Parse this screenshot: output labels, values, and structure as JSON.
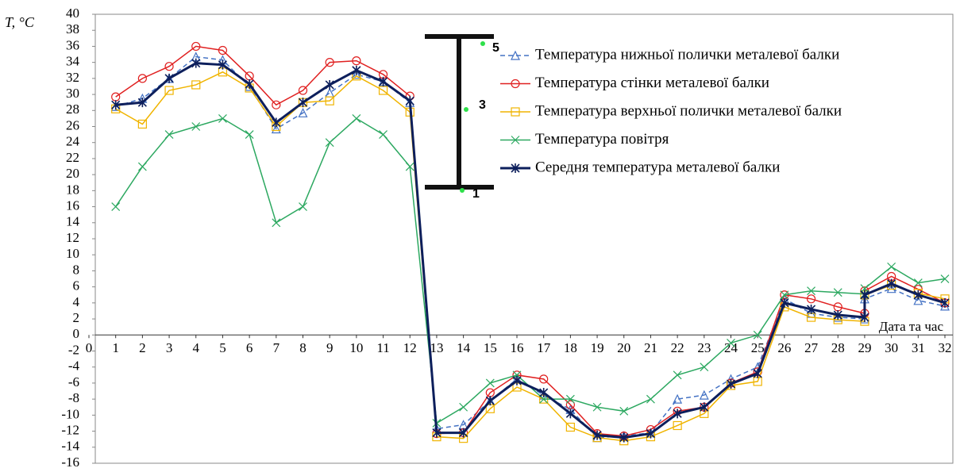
{
  "chart_data": {
    "type": "line",
    "ylabel": "T, °C",
    "xlabel": "Дата та час",
    "x": [
      1,
      2,
      3,
      4,
      5,
      6,
      7,
      8,
      9,
      10,
      11,
      12,
      13,
      14,
      15,
      16,
      17,
      18,
      19,
      20,
      21,
      22,
      23,
      24,
      25,
      26,
      27,
      28,
      29,
      29,
      30,
      31,
      32
    ],
    "xlim": [
      0,
      32
    ],
    "xticks": [
      0,
      1,
      2,
      3,
      4,
      5,
      6,
      7,
      8,
      9,
      10,
      11,
      12,
      13,
      14,
      15,
      16,
      17,
      18,
      19,
      20,
      21,
      22,
      23,
      24,
      25,
      26,
      27,
      28,
      29,
      30,
      31,
      32
    ],
    "ylim": [
      -16,
      40
    ],
    "yticks": [
      -16,
      -14,
      -12,
      -10,
      -8,
      -6,
      -4,
      -2,
      0,
      2,
      4,
      6,
      8,
      10,
      12,
      14,
      16,
      18,
      20,
      22,
      24,
      26,
      28,
      30,
      32,
      34,
      36,
      38,
      40
    ],
    "beam_labels": [
      {
        "text": "5",
        "color": "#f0a000"
      },
      {
        "text": "3",
        "color": "#e02020"
      },
      {
        "text": "1",
        "color": "#3a4fd0"
      }
    ],
    "series": [
      {
        "name": "Температура нижньої полички металевої балки",
        "color": "#4472c4",
        "marker": "triangle",
        "dash": true,
        "values": [
          28.5,
          29.5,
          32,
          34.7,
          34.3,
          31,
          25.7,
          27.7,
          30.2,
          32.5,
          31.6,
          29,
          -11.7,
          -11.2,
          -8.2,
          -5.5,
          -7.5,
          -9.3,
          -12.8,
          -12.6,
          -12.2,
          -8,
          -7.5,
          -5.5,
          -4,
          4.5,
          2.7,
          2.2,
          2,
          4.5,
          5.8,
          4.3,
          3.6
        ]
      },
      {
        "name": "Температура стінки металевої балки",
        "color": "#e02020",
        "marker": "circle",
        "values": [
          29.7,
          32,
          33.5,
          36,
          35.5,
          32.3,
          28.7,
          30.5,
          34,
          34.2,
          32.5,
          29.8,
          -12.3,
          -12.2,
          -7.2,
          -5,
          -5.5,
          -8.7,
          -12.3,
          -12.6,
          -11.8,
          -9.5,
          -9,
          -6,
          -4.6,
          5,
          4.5,
          3.5,
          2.7,
          5.5,
          7.3,
          5.7,
          4
        ]
      },
      {
        "name": "Температура верхньої полички металевої балки",
        "color": "#f0b400",
        "marker": "square",
        "values": [
          28.2,
          26.3,
          30.5,
          31.2,
          32.8,
          30.8,
          26,
          29,
          29.2,
          32.3,
          30.5,
          27.8,
          -12.7,
          -12.9,
          -9.2,
          -6.5,
          -8,
          -11.5,
          -12.8,
          -13.2,
          -12.7,
          -11.3,
          -9.8,
          -6.3,
          -5.8,
          3.5,
          2.2,
          1.9,
          1.7,
          5,
          6.2,
          5.2,
          4.5
        ]
      },
      {
        "name": "Температура повітря",
        "color": "#2ca860",
        "marker": "x",
        "values": [
          16,
          21,
          25,
          26,
          27,
          25,
          14,
          16,
          24,
          27,
          25,
          21,
          -11,
          -9,
          -6,
          -5,
          -8,
          -8,
          -9,
          -9.5,
          -8,
          -5,
          -4,
          -1,
          0,
          5,
          5.5,
          5.3,
          5.1,
          5.8,
          8.5,
          6.5,
          7
        ]
      },
      {
        "name": "Середня температура металевої балки",
        "color": "#0d1f5c",
        "marker": "star",
        "width": 3,
        "values": [
          28.7,
          29,
          32,
          33.9,
          33.7,
          31.3,
          26.5,
          29,
          31.2,
          33,
          31.6,
          29.2,
          -12.2,
          -12.2,
          -8.2,
          -5.7,
          -7.2,
          -9.8,
          -12.5,
          -12.8,
          -12.3,
          -9.8,
          -9,
          -6.1,
          -4.8,
          4,
          3.2,
          2.5,
          2.2,
          5,
          6.4,
          5,
          4
        ]
      }
    ]
  }
}
